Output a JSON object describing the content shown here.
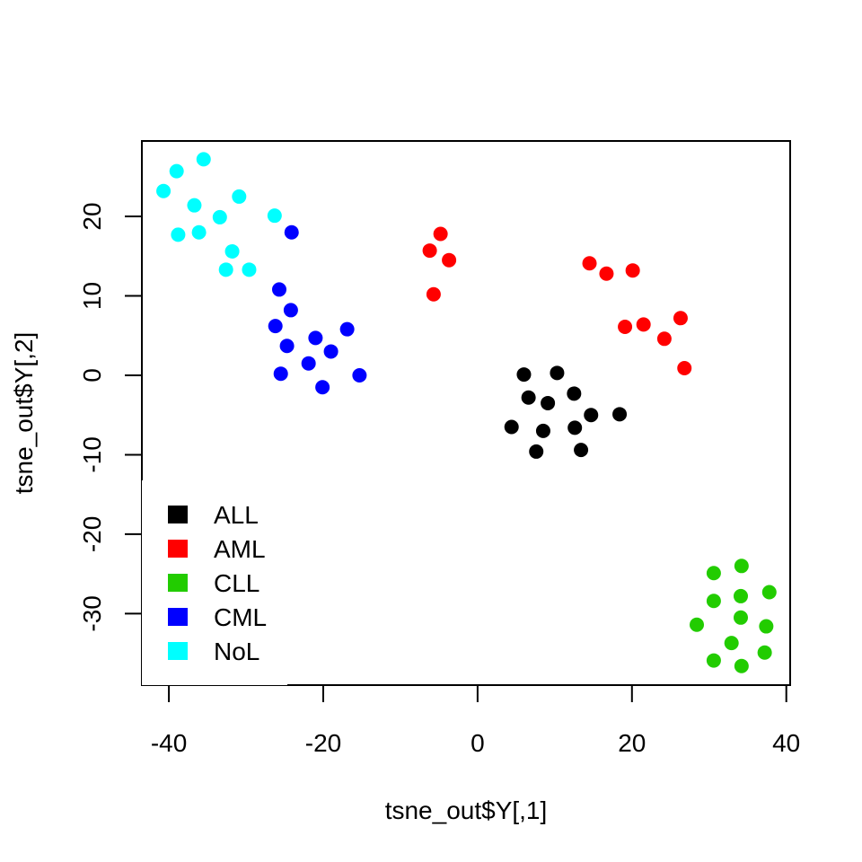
{
  "chart_data": {
    "type": "scatter",
    "title": "",
    "xlabel": "tsne_out$Y[,1]",
    "ylabel": "tsne_out$Y[,2]",
    "xlim": [
      -43.5,
      40.5
    ],
    "ylim": [
      -39,
      29.5
    ],
    "xticks": [
      -40,
      -20,
      0,
      20,
      40
    ],
    "yticks": [
      -30,
      -20,
      -10,
      0,
      10,
      20
    ],
    "grid": false,
    "legend_position": "bottom-left",
    "series": [
      {
        "name": "ALL",
        "color": "#000000",
        "points": [
          [
            6.0,
            0.1
          ],
          [
            10.3,
            0.3
          ],
          [
            6.6,
            -2.8
          ],
          [
            9.1,
            -3.5
          ],
          [
            12.5,
            -2.3
          ],
          [
            14.7,
            -5.0
          ],
          [
            18.4,
            -4.9
          ],
          [
            4.4,
            -6.5
          ],
          [
            8.5,
            -7.0
          ],
          [
            12.6,
            -6.6
          ],
          [
            7.6,
            -9.6
          ],
          [
            13.4,
            -9.4
          ]
        ]
      },
      {
        "name": "AML",
        "color": "#FF0000",
        "points": [
          [
            -4.8,
            17.8
          ],
          [
            -6.2,
            15.7
          ],
          [
            -3.7,
            14.5
          ],
          [
            -5.7,
            10.2
          ],
          [
            14.5,
            14.1
          ],
          [
            16.7,
            12.8
          ],
          [
            20.1,
            13.2
          ],
          [
            19.1,
            6.1
          ],
          [
            21.5,
            6.4
          ],
          [
            26.3,
            7.2
          ],
          [
            24.2,
            4.6
          ],
          [
            26.8,
            0.9
          ]
        ]
      },
      {
        "name": "CLL",
        "color": "#22CC00",
        "points": [
          [
            30.6,
            -24.9
          ],
          [
            34.2,
            -24.0
          ],
          [
            30.6,
            -28.4
          ],
          [
            34.1,
            -27.8
          ],
          [
            37.8,
            -27.3
          ],
          [
            28.4,
            -31.4
          ],
          [
            34.1,
            -30.5
          ],
          [
            37.4,
            -31.6
          ],
          [
            32.9,
            -33.7
          ],
          [
            30.6,
            -35.9
          ],
          [
            37.2,
            -34.9
          ],
          [
            34.2,
            -36.6
          ]
        ]
      },
      {
        "name": "CML",
        "color": "#0000FF",
        "points": [
          [
            -24.1,
            18.0
          ],
          [
            -25.7,
            10.8
          ],
          [
            -24.2,
            8.2
          ],
          [
            -26.2,
            6.2
          ],
          [
            -24.7,
            3.7
          ],
          [
            -21.0,
            4.7
          ],
          [
            -16.9,
            5.8
          ],
          [
            -19.0,
            3.0
          ],
          [
            -21.9,
            1.5
          ],
          [
            -25.5,
            0.2
          ],
          [
            -15.3,
            0.0
          ],
          [
            -20.1,
            -1.5
          ]
        ]
      },
      {
        "name": "NoL",
        "color": "#00FFFF",
        "points": [
          [
            -35.5,
            27.2
          ],
          [
            -39.0,
            25.7
          ],
          [
            -40.7,
            23.2
          ],
          [
            -30.9,
            22.5
          ],
          [
            -36.7,
            21.4
          ],
          [
            -33.4,
            19.9
          ],
          [
            -26.3,
            20.1
          ],
          [
            -38.8,
            17.7
          ],
          [
            -36.1,
            18.0
          ],
          [
            -31.8,
            15.6
          ],
          [
            -32.6,
            13.3
          ],
          [
            -29.6,
            13.3
          ]
        ]
      }
    ]
  }
}
